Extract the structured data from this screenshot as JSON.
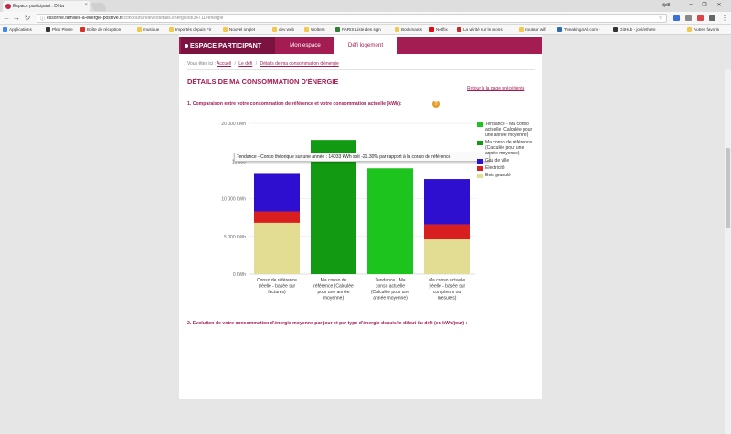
{
  "browser": {
    "tab_title": "Espace participant : Déta",
    "tab_close": "×",
    "profile": "djd8",
    "window_controls": [
      "–",
      "❐",
      "✕"
    ],
    "url_host": "essonne.familles-a-energie-positive.fr",
    "url_path": "/concours/releve/details.energie/id/34711#energie",
    "bookmarks": [
      {
        "label": "Applications",
        "color": "#4285f4"
      },
      {
        "label": "Pleo Pierre",
        "color": "#333333"
      },
      {
        "label": "Boîte de réception",
        "color": "#d93025"
      },
      {
        "label": "musique",
        "color": "#f2c94c"
      },
      {
        "label": "Importés depuis Fir",
        "color": "#f2c94c"
      },
      {
        "label": "Nouvel onglet",
        "color": "#f2c94c"
      },
      {
        "label": "dev web",
        "color": "#f2c94c"
      },
      {
        "label": "Wolters",
        "color": "#f2c94c"
      },
      {
        "label": "PARIS Liste des sign",
        "color": "#2e7d32"
      },
      {
        "label": "Bookmarks",
        "color": "#f2c94c"
      },
      {
        "label": "Netflix",
        "color": "#e50914"
      },
      {
        "label": "La vérité sur le mons",
        "color": "#c62828"
      },
      {
        "label": "routeur wifi",
        "color": "#f2c94c"
      },
      {
        "label": "Tweaking4All.com -",
        "color": "#2b6cb0"
      },
      {
        "label": "GitHub - jovi/ethere",
        "color": "#333333"
      },
      {
        "label": "Autres favoris",
        "color": "#f2c94c"
      }
    ]
  },
  "header": {
    "espace": "ESPACE PARTICIPANT",
    "mon_espace": "Mon espace",
    "defi": "Défi logement"
  },
  "breadcrumb": {
    "prefix": "Vous êtes ici :",
    "items": [
      "Accueil",
      "Le défi",
      "Détails de ma consommation d'énergie"
    ]
  },
  "page": {
    "title": "DÉTAILS DE MA CONSOMMATION D'ÉNERGIE",
    "back": "Retour à la page précédente",
    "subtitle1": "1. Comparaison entre votre consommation de référence et votre consommation actuelle (kWh):",
    "help": "?",
    "subtitle2": "2. Evolution de votre consommation d'énergie moyenne par jour et par type d'énergie depuis le début du défi (en kWh/jour) :"
  },
  "tooltip": "Tendance - Conso théorique sur une année : 14033 kWh soit -21.30% par rapport à la conso de référence",
  "chart_data": {
    "type": "bar",
    "stacked": true,
    "y_ticks": [
      "20 000 kWh",
      "15 000",
      "10 000 kWh",
      "5 000 kWh",
      "0 kWh"
    ],
    "ylim": [
      0,
      20000
    ],
    "categories": [
      [
        "Conso de référence",
        "(réelle - basée sur",
        "factures)"
      ],
      [
        "Ma conso de",
        "référence (Calculée",
        "pour une année",
        "moyenne)"
      ],
      [
        "Tendance - Ma",
        "conso actuelle",
        "(Calculée pour une",
        "année moyenne)"
      ],
      [
        "Ma conso actuelle",
        "(réelle - basée sur",
        "compteurs ou",
        "mesures)"
      ]
    ],
    "bars": [
      {
        "segments": [
          {
            "name": "Bois granulé",
            "value": 6800,
            "color": "#e3dc93"
          },
          {
            "name": "Electricité",
            "value": 1500,
            "color": "#d81e1e"
          },
          {
            "name": "Gaz de ville",
            "value": 5100,
            "color": "#2e0fd0"
          }
        ]
      },
      {
        "segments": [
          {
            "name": "Ma conso de référence (Calculée pour une année moyenne)",
            "value": 17800,
            "color": "#129b12"
          }
        ]
      },
      {
        "segments": [
          {
            "name": "Tendance - Ma conso actuelle (Calculée pour une année moyenne)",
            "value": 14033,
            "color": "#1ec41e"
          }
        ]
      },
      {
        "segments": [
          {
            "name": "Bois granulé",
            "value": 4600,
            "color": "#e3dc93"
          },
          {
            "name": "Electricité",
            "value": 2000,
            "color": "#d81e1e"
          },
          {
            "name": "Gaz de ville",
            "value": 6000,
            "color": "#2e0fd0"
          }
        ]
      }
    ],
    "legend": [
      {
        "label": "Tendance - Ma conso actuelle (Calculée pour une année moyenne)",
        "color": "#1ec41e"
      },
      {
        "label": "Ma conso de référence (Calculée pour une année moyenne)",
        "color": "#129b12"
      },
      {
        "label": "Gaz de ville",
        "color": "#2e0fd0"
      },
      {
        "label": "Electricité",
        "color": "#d81e1e"
      },
      {
        "label": "Bois granulé",
        "color": "#e3dc93"
      }
    ]
  }
}
